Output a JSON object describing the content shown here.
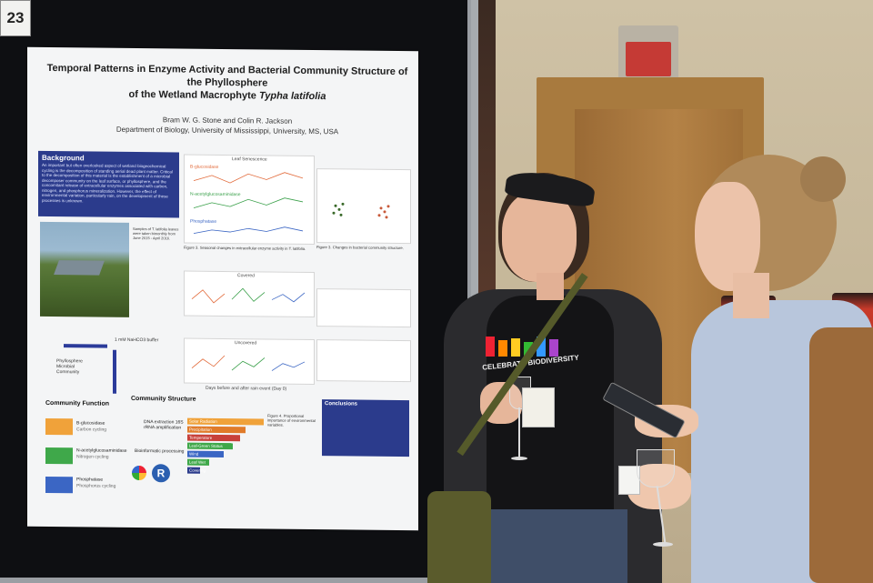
{
  "poster": {
    "board_number": "23",
    "title_line1": "Temporal Patterns in Enzyme Activity and Bacterial Community Structure of the Phyllosphere",
    "title_line2_prefix": "of the Wetland Macrophyte ",
    "title_line2_species": "Typha latifolia",
    "authors": "Bram W. G. Stone and Colin R. Jackson",
    "affiliation": "Department of Biology, University of Mississippi, University, MS, USA",
    "background_heading": "Background",
    "background_text": "An important but often overlooked aspect of wetland biogeochemical cycling is the decomposition of standing aerial dead plant matter. Critical to the decomposition of this material is the establishment of a microbial decomposer community on the leaf surface, or phyllosphere, and the concomitant release of extracellular enzymes associated with carbon, nitrogen, and phosphorus mineralization. However, the effect of environmental variation, particularly rain, on the development of these processes is unknown.",
    "chart_top_title": "Leaf Senescence",
    "series_labels": [
      "B-glucosidase",
      "N-acetylglucosaminidase",
      "Phosphatase"
    ],
    "covered_label": "Covered",
    "uncovered_label": "Uncovered",
    "x_axis_label": "Days before and after rain event (Day 0)",
    "flow_buffer": "1 mM NaHCO3 buffer",
    "flow_community": "Phyllosphere Microbial Community",
    "community_function": "Community Function",
    "community_structure": "Community Structure",
    "enzymes": [
      {
        "name": "B-glucosidase",
        "role": "Carbon cycling"
      },
      {
        "name": "N-acetylglucosaminidase",
        "role": "Nitrogen cycling"
      },
      {
        "name": "Phosphatase",
        "role": "Phosphorus cycling"
      }
    ],
    "dna_text": "DNA extraction 16S rRNA amplification",
    "bioinf_text": "Bioinformatic processing",
    "bars": [
      "Solar Radiation",
      "Precipitation",
      "Temperature",
      "Leaf-Green Status",
      "Wind",
      "Leaf Wet",
      "Covering"
    ],
    "conclusions_heading": "Conclusions"
  },
  "colors": {
    "board": "#0e0f12",
    "header_box": "#2b3b8c",
    "red_bar": "#c8403a",
    "green": "#3fa84a",
    "blue": "#3b66c4",
    "orange": "#f0a23a"
  },
  "badge": {
    "shirt_text": "CELEBRATE BIODIVERSITY"
  }
}
